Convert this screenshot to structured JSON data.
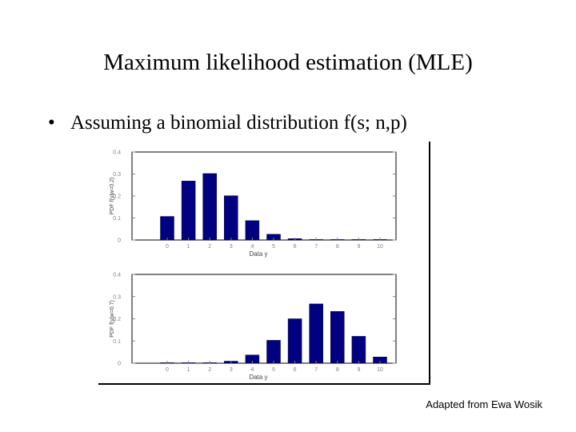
{
  "slide": {
    "title": "Maximum likelihood estimation (MLE)",
    "bullet_symbol": "•",
    "bullet_text": "Assuming a binomial distribution f(s; n,p)",
    "credit": "Adapted from Ewa Wosik"
  },
  "colors": {
    "bar": "#000080",
    "axis": "#000000",
    "tick": "#808080",
    "text": "#000000"
  },
  "chart_data": [
    {
      "type": "bar",
      "title": "",
      "xlabel": "Data y",
      "ylabel": "PDF f(y|w=0.2)",
      "categories": [
        "0",
        "1",
        "2",
        "3",
        "4",
        "5",
        "6",
        "7",
        "8",
        "9",
        "10"
      ],
      "values": [
        0.107,
        0.268,
        0.302,
        0.201,
        0.088,
        0.026,
        0.006,
        0.001,
        0.0,
        0.0,
        0.0
      ],
      "yticks": [
        "0",
        "0.1",
        "0.2",
        "0.3",
        "0.4"
      ],
      "ylim": [
        0,
        0.4
      ],
      "grid": false
    },
    {
      "type": "bar",
      "title": "",
      "xlabel": "Data y",
      "ylabel": "PDF f(y|w=0.7)",
      "categories": [
        "0",
        "1",
        "2",
        "3",
        "4",
        "5",
        "6",
        "7",
        "8",
        "9",
        "10"
      ],
      "values": [
        0.0,
        0.0,
        0.001,
        0.009,
        0.037,
        0.103,
        0.2,
        0.267,
        0.233,
        0.121,
        0.028
      ],
      "yticks": [
        "0",
        "0.1",
        "0.2",
        "0.3",
        "0.4"
      ],
      "ylim": [
        0,
        0.4
      ],
      "grid": false
    }
  ]
}
